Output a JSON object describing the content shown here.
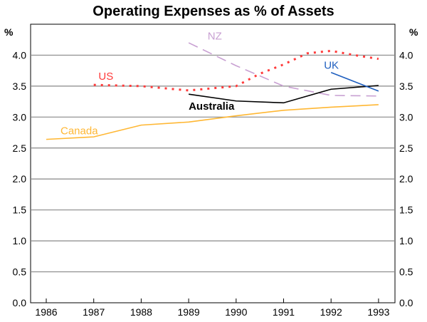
{
  "chart_data": {
    "type": "line",
    "title": "Operating Expenses as % of Assets",
    "ylabel_left": "%",
    "ylabel_right": "%",
    "ylim": [
      0,
      4.5
    ],
    "yticks": [
      "0.0",
      "0.5",
      "1.0",
      "1.5",
      "2.0",
      "2.5",
      "3.0",
      "3.5",
      "4.0"
    ],
    "xlim": [
      1985.7,
      1993.4
    ],
    "xticks": [
      "1986",
      "1987",
      "1988",
      "1989",
      "1990",
      "1991",
      "1992",
      "1993"
    ],
    "grid": true,
    "series": [
      {
        "name": "Canada",
        "color": "#ffb733",
        "style": "solid",
        "x": [
          1986,
          1987,
          1988,
          1989,
          1990,
          1991,
          1992,
          1993
        ],
        "y": [
          2.64,
          2.68,
          2.87,
          2.92,
          3.02,
          3.11,
          3.16,
          3.2
        ]
      },
      {
        "name": "US",
        "color": "#ff3b3b",
        "style": "dotted",
        "x": [
          1987,
          1988,
          1989,
          1990,
          1990.5,
          1991,
          1991.5,
          1992,
          1992.5,
          1993
        ],
        "y": [
          3.52,
          3.5,
          3.43,
          3.5,
          3.7,
          3.85,
          4.03,
          4.07,
          4.0,
          3.94
        ]
      },
      {
        "name": "NZ",
        "color": "#c8a0d2",
        "style": "dashed",
        "x": [
          1989,
          1990,
          1991,
          1992,
          1993
        ],
        "y": [
          4.2,
          3.83,
          3.5,
          3.35,
          3.34
        ]
      },
      {
        "name": "Australia",
        "color": "#000000",
        "style": "solid",
        "x": [
          1989,
          1990,
          1991,
          1992,
          1993
        ],
        "y": [
          3.37,
          3.26,
          3.23,
          3.45,
          3.51
        ]
      },
      {
        "name": "UK",
        "color": "#1f5fbf",
        "style": "solid",
        "x": [
          1992,
          1993
        ],
        "y": [
          3.72,
          3.42
        ]
      }
    ],
    "labels": [
      {
        "series": "US",
        "text": "US",
        "x": 1987.1,
        "y": 3.6
      },
      {
        "series": "NZ",
        "text": "NZ",
        "x": 1989.4,
        "y": 4.25
      },
      {
        "series": "UK",
        "text": "UK",
        "x": 1991.85,
        "y": 3.78
      },
      {
        "series": "Australia",
        "text": "Australia",
        "x": 1989,
        "y": 3.12
      },
      {
        "series": "Canada",
        "text": "Canada",
        "x": 1986.3,
        "y": 2.72
      }
    ]
  }
}
